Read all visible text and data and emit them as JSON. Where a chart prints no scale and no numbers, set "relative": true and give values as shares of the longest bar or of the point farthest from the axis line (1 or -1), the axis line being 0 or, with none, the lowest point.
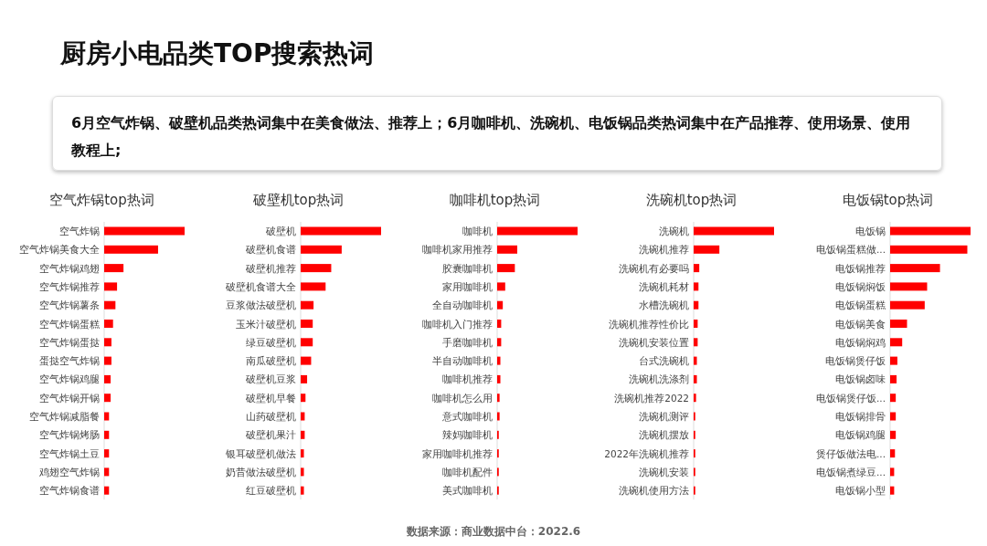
{
  "chart_data": [
    {
      "type": "other",
      "title": "厨房小电品类TOP搜索热词",
      "subtitle": "6月空气炸锅、破壁机品类热词集中在美食做法、推荐上；6月咖啡机、洗碗机、电饭锅品类热词集中在产品推荐、使用场景、使用教程上;",
      "annotations": [
        "数据来源：商业数据中台：2022.6"
      ]
    },
    {
      "type": "bar",
      "orientation": "horizontal",
      "relative": true,
      "title": "空气炸锅top热词",
      "color": "#ff0000",
      "categories": [
        "空气炸锅",
        "空气炸锅美食大全",
        "空气炸锅鸡翅",
        "空气炸锅推荐",
        "空气炸锅薯条",
        "空气炸锅蛋糕",
        "空气炸锅蛋挞",
        "蛋挞空气炸锅",
        "空气炸锅鸡腿",
        "空气炸锅开锅",
        "空气炸锅减脂餐",
        "空气炸锅烤肠",
        "空气炸锅土豆",
        "鸡翅空气炸锅",
        "空气炸锅食谱"
      ],
      "values": [
        1,
        0.67,
        0.24,
        0.16,
        0.14,
        0.11,
        0.09,
        0.09,
        0.08,
        0.08,
        0.06,
        0.06,
        0.06,
        0.06,
        0.06
      ]
    },
    {
      "type": "bar",
      "orientation": "horizontal",
      "relative": true,
      "title": "破壁机top热词",
      "color": "#ff0000",
      "categories": [
        "破壁机",
        "破壁机食谱",
        "破壁机推荐",
        "破壁机食谱大全",
        "豆浆做法破壁机",
        "玉米汁破壁机",
        "绿豆破壁机",
        "南瓜破壁机",
        "破壁机豆浆",
        "破壁机早餐",
        "山药破壁机",
        "破壁机果汁",
        "银耳破壁机做法",
        "奶昔做法破壁机",
        "红豆破壁机"
      ],
      "values": [
        1,
        0.51,
        0.38,
        0.31,
        0.16,
        0.15,
        0.15,
        0.13,
        0.08,
        0.06,
        0.05,
        0.05,
        0.04,
        0.04,
        0.04
      ]
    },
    {
      "type": "bar",
      "orientation": "horizontal",
      "relative": true,
      "title": "咖啡机top热词",
      "color": "#ff0000",
      "categories": [
        "咖啡机",
        "咖啡机家用推荐",
        "胶囊咖啡机",
        "家用咖啡机",
        "全自动咖啡机",
        "咖啡机入门推荐",
        "手磨咖啡机",
        "半自动咖啡机",
        "咖啡机推荐",
        "咖啡机怎么用",
        "意式咖啡机",
        "辣妈咖啡机",
        "家用咖啡机推荐",
        "咖啡机配件",
        "美式咖啡机"
      ],
      "values": [
        1,
        0.25,
        0.22,
        0.1,
        0.07,
        0.05,
        0.05,
        0.04,
        0.04,
        0.03,
        0.03,
        0.02,
        0.02,
        0.02,
        0.02
      ]
    },
    {
      "type": "bar",
      "orientation": "horizontal",
      "relative": true,
      "title": "洗碗机top热词",
      "color": "#ff0000",
      "categories": [
        "洗碗机",
        "洗碗机推荐",
        "洗碗机有必要吗",
        "洗碗机耗材",
        "水槽洗碗机",
        "洗碗机推荐性价比",
        "洗碗机安装位置",
        "台式洗碗机",
        "洗碗机洗涤剂",
        "洗碗机推荐2022",
        "洗碗机测评",
        "洗碗机摆放",
        "2022年洗碗机推荐",
        "洗碗机安装",
        "洗碗机使用方法"
      ],
      "values": [
        1,
        0.32,
        0.07,
        0.06,
        0.06,
        0.05,
        0.05,
        0.04,
        0.04,
        0.03,
        0.02,
        0.02,
        0.02,
        0.02,
        0.02
      ]
    },
    {
      "type": "bar",
      "orientation": "horizontal",
      "relative": true,
      "title": "电饭锅top热词",
      "color": "#ff0000",
      "categories": [
        "电饭锅",
        "电饭锅蛋糕做...",
        "电饭锅推荐",
        "电饭锅焖饭",
        "电饭锅蛋糕",
        "电饭锅美食",
        "电饭锅焖鸡",
        "电饭锅煲仔饭",
        "电饭锅卤味",
        "电饭锅煲仔饭...",
        "电饭锅排骨",
        "电饭锅鸡腿",
        "煲仔饭做法电...",
        "电饭锅煮绿豆...",
        "电饭锅小型"
      ],
      "values": [
        1,
        0.96,
        0.62,
        0.46,
        0.43,
        0.21,
        0.15,
        0.09,
        0.08,
        0.07,
        0.07,
        0.07,
        0.06,
        0.05,
        0.05
      ]
    }
  ]
}
